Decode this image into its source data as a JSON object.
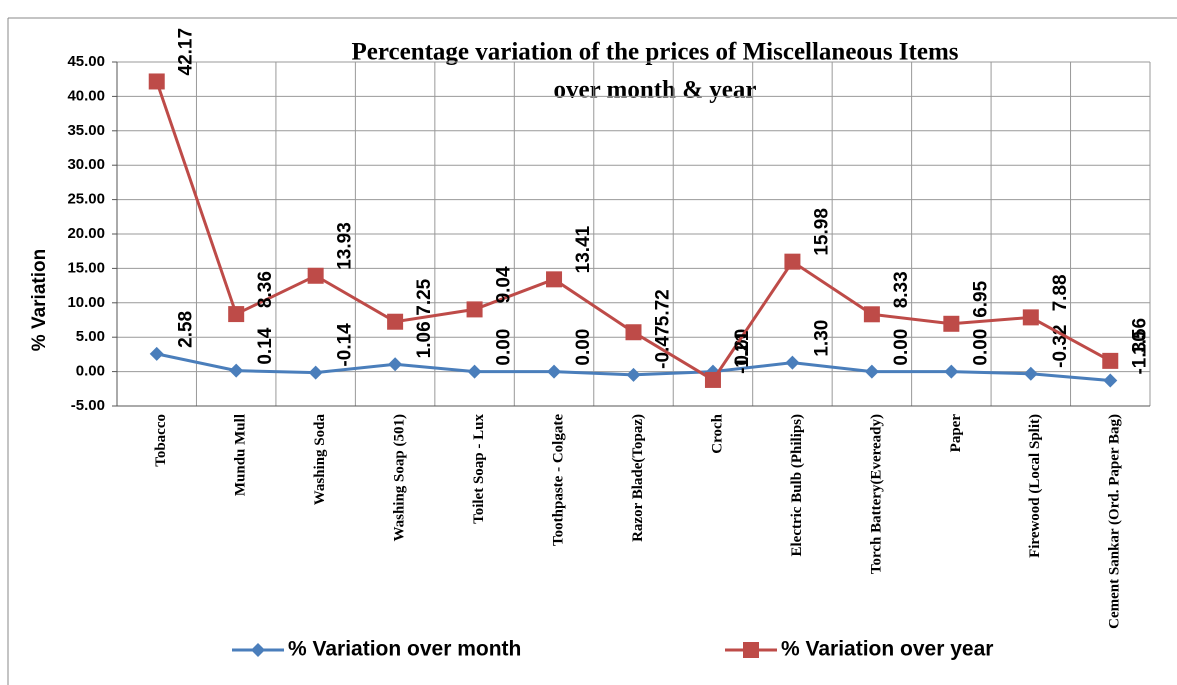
{
  "chart_data": {
    "type": "line",
    "title": "Percentage variation of the prices of Miscellaneous Items",
    "subtitle": "over month & year",
    "y_label": "% Variation",
    "categories": [
      "Tobacco",
      "Mundu Mull",
      "Washing Soda",
      "Washing Soap (501)",
      "Toilet Soap - Lux",
      "Toothpaste - Colgate",
      "Razor Blade(Topaz)",
      "Croch",
      "Electric Bulb (Philips)",
      "Torch Battery(Eveready)",
      "Paper",
      "Firewood (Local Split)",
      "Cement Sankar (Ord. Paper Bag)"
    ],
    "series": [
      {
        "name": "% Variation over month",
        "color": "#4a7ebb",
        "marker": "diamond",
        "values": [
          2.58,
          0.14,
          -0.14,
          1.06,
          0,
          0,
          -0.47,
          0,
          1.3,
          0,
          0,
          -0.32,
          -1.3
        ],
        "value_labels": [
          "2.58",
          "0.14",
          "-0.14",
          "1.06",
          "0.00",
          "0.00",
          "-0.47",
          "0.00",
          "1.30",
          "0.00",
          "0.00",
          "-0.32",
          "-1.30"
        ]
      },
      {
        "name": "% Variation over year",
        "color": "#be4b48",
        "marker": "square",
        "values": [
          42.17,
          8.36,
          13.93,
          7.25,
          9.04,
          13.41,
          5.72,
          -1.21,
          15.98,
          8.33,
          6.95,
          7.88,
          1.56
        ],
        "value_labels": [
          "42.17",
          "8.36",
          "13.93",
          "7.25",
          "9.04",
          "13.41",
          "5.72",
          "-1.21",
          "15.98",
          "8.33",
          "6.95",
          "7.88",
          "1.56"
        ]
      }
    ],
    "ylim": [
      -5,
      45
    ],
    "yticks": [
      {
        "value": -5,
        "label": "-5.00"
      },
      {
        "value": 0,
        "label": "0.00"
      },
      {
        "value": 5,
        "label": "5.00"
      },
      {
        "value": 10,
        "label": "10.00"
      },
      {
        "value": 15,
        "label": "15.00"
      },
      {
        "value": 20,
        "label": "20.00"
      },
      {
        "value": 25,
        "label": "25.00"
      },
      {
        "value": 30,
        "label": "30.00"
      },
      {
        "value": 35,
        "label": "35.00"
      },
      {
        "value": 40,
        "label": "40.00"
      },
      {
        "value": 45,
        "label": "45.00"
      }
    ],
    "grid": true,
    "legend": "bottom"
  }
}
